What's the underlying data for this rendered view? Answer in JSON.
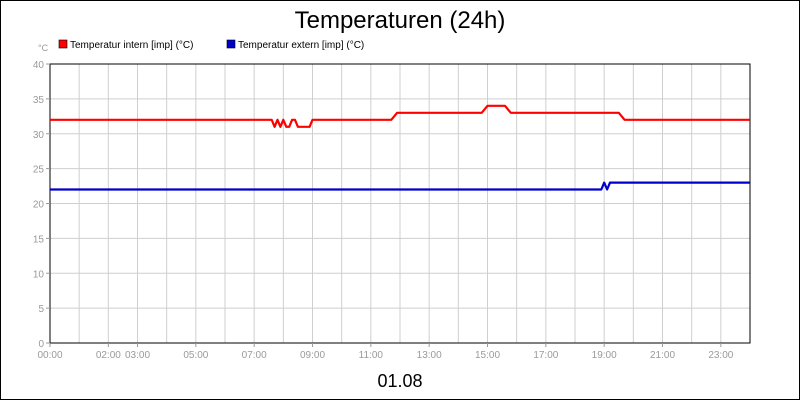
{
  "chart_data": {
    "type": "line",
    "title": "Temperaturen (24h)",
    "y_unit": "°C",
    "xlabel": "01.08",
    "ylim": [
      0,
      40
    ],
    "yticks": [
      0,
      5,
      10,
      15,
      20,
      25,
      30,
      35,
      40
    ],
    "xlim": [
      0,
      24
    ],
    "xticks": [
      {
        "x": 0,
        "label": "00:00"
      },
      {
        "x": 2,
        "label": "02:00"
      },
      {
        "x": 3,
        "label": "03:00"
      },
      {
        "x": 5,
        "label": "05:00"
      },
      {
        "x": 7,
        "label": "07:00"
      },
      {
        "x": 9,
        "label": "09:00"
      },
      {
        "x": 11,
        "label": "11:00"
      },
      {
        "x": 13,
        "label": "13:00"
      },
      {
        "x": 15,
        "label": "15:00"
      },
      {
        "x": 17,
        "label": "17:00"
      },
      {
        "x": 19,
        "label": "19:00"
      },
      {
        "x": 21,
        "label": "21:00"
      },
      {
        "x": 23,
        "label": "23:00"
      }
    ],
    "grid": true,
    "legend_position": "top-left",
    "series": [
      {
        "name": "Temperatur intern [imp] (°C)",
        "color": "#ff0000",
        "x": [
          0,
          7.6,
          7.7,
          7.8,
          7.9,
          8.0,
          8.1,
          8.2,
          8.3,
          8.4,
          8.5,
          8.6,
          8.9,
          9.0,
          11.7,
          11.9,
          14.8,
          15.0,
          15.6,
          15.8,
          19.5,
          19.7,
          24.0
        ],
        "values": [
          32,
          32,
          31,
          32,
          31,
          32,
          31,
          31,
          32,
          32,
          31,
          31,
          31,
          32,
          32,
          33,
          33,
          34,
          34,
          33,
          33,
          32,
          32
        ]
      },
      {
        "name": "Temperatur extern [imp] (°C)",
        "color": "#0000cc",
        "x": [
          0,
          18.9,
          19.0,
          19.1,
          19.2,
          24.0
        ],
        "values": [
          22,
          22,
          23,
          22,
          23,
          23
        ]
      }
    ]
  }
}
